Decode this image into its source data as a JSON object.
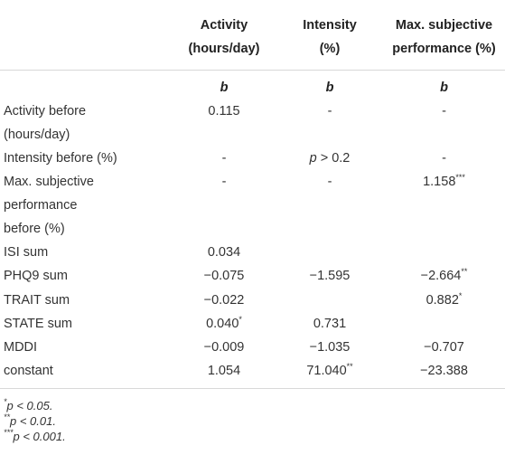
{
  "header": {
    "col1": [
      "Activity",
      "(hours/day)"
    ],
    "col2": [
      "Intensity",
      "(%)"
    ],
    "col3": [
      "Max. subjective",
      "performance (%)"
    ]
  },
  "coef_label": "b",
  "rows": [
    {
      "label": [
        "Activity before",
        "(hours/day)"
      ],
      "v1": "0.115",
      "v2": "-",
      "v3": "-"
    },
    {
      "label": [
        "Intensity before (%)"
      ],
      "v1": "-",
      "v2_italic": "p",
      "v2_rest": " > 0.2",
      "v3": "-"
    },
    {
      "label": [
        "Max. subjective",
        "performance",
        "before (%)"
      ],
      "v1": "-",
      "v2": "-",
      "v3": "1.158",
      "v3_sup": "***"
    },
    {
      "label": [
        "ISI sum"
      ],
      "v1": "0.034",
      "v2": "",
      "v3": ""
    },
    {
      "label": [
        "PHQ9 sum"
      ],
      "v1": "−0.075",
      "v2": "−1.595",
      "v3": "−2.664",
      "v3_sup": "**"
    },
    {
      "label": [
        "TRAIT sum"
      ],
      "v1": "−0.022",
      "v2": "",
      "v3": "0.882",
      "v3_sup": "*"
    },
    {
      "label": [
        "STATE sum"
      ],
      "v1": "0.040",
      "v1_sup": "*",
      "v2": "0.731",
      "v3": ""
    },
    {
      "label": [
        "MDDI"
      ],
      "v1": "−0.009",
      "v2": "−1.035",
      "v3": "−0.707"
    },
    {
      "label": [
        "constant"
      ],
      "v1": "1.054",
      "v2": "71.040",
      "v2_sup": "**",
      "v3": "−23.388"
    }
  ],
  "notes": [
    {
      "sup": "*",
      "text": "p < 0.05."
    },
    {
      "sup": "**",
      "text": "p < 0.01."
    },
    {
      "sup": "***",
      "text": "p < 0.001."
    }
  ]
}
